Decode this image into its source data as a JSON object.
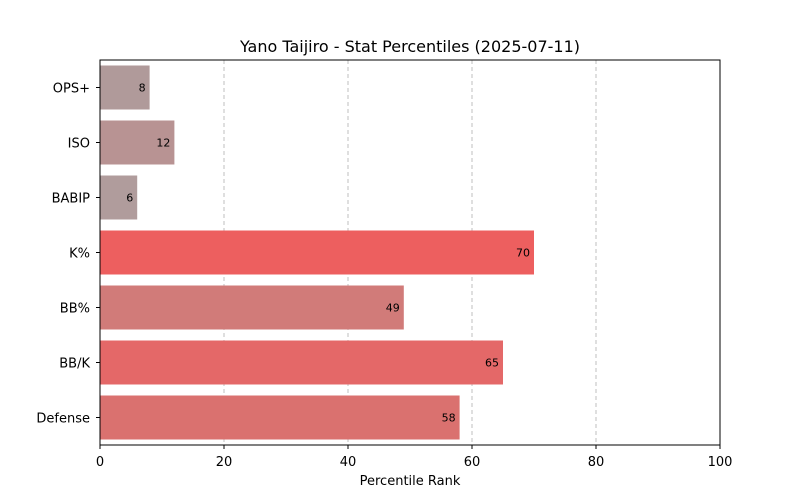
{
  "chart_data": {
    "type": "bar",
    "orientation": "horizontal",
    "title": "Yano Taijiro - Stat Percentiles (2025-07-11)",
    "xlabel": "Percentile Rank",
    "ylabel": "",
    "xlim": [
      0,
      100
    ],
    "xticks": [
      0,
      20,
      40,
      60,
      80,
      100
    ],
    "grid": "x-dashed",
    "categories": [
      "OPS+",
      "ISO",
      "BABIP",
      "K%",
      "BB%",
      "BB/K",
      "Defense"
    ],
    "values": [
      8,
      12,
      6,
      70,
      49,
      65,
      58
    ],
    "colors": [
      "#b09a9a",
      "#b89393",
      "#b09c9c",
      "#ed5f5f",
      "#d17b79",
      "#e46868",
      "#da716f"
    ]
  }
}
